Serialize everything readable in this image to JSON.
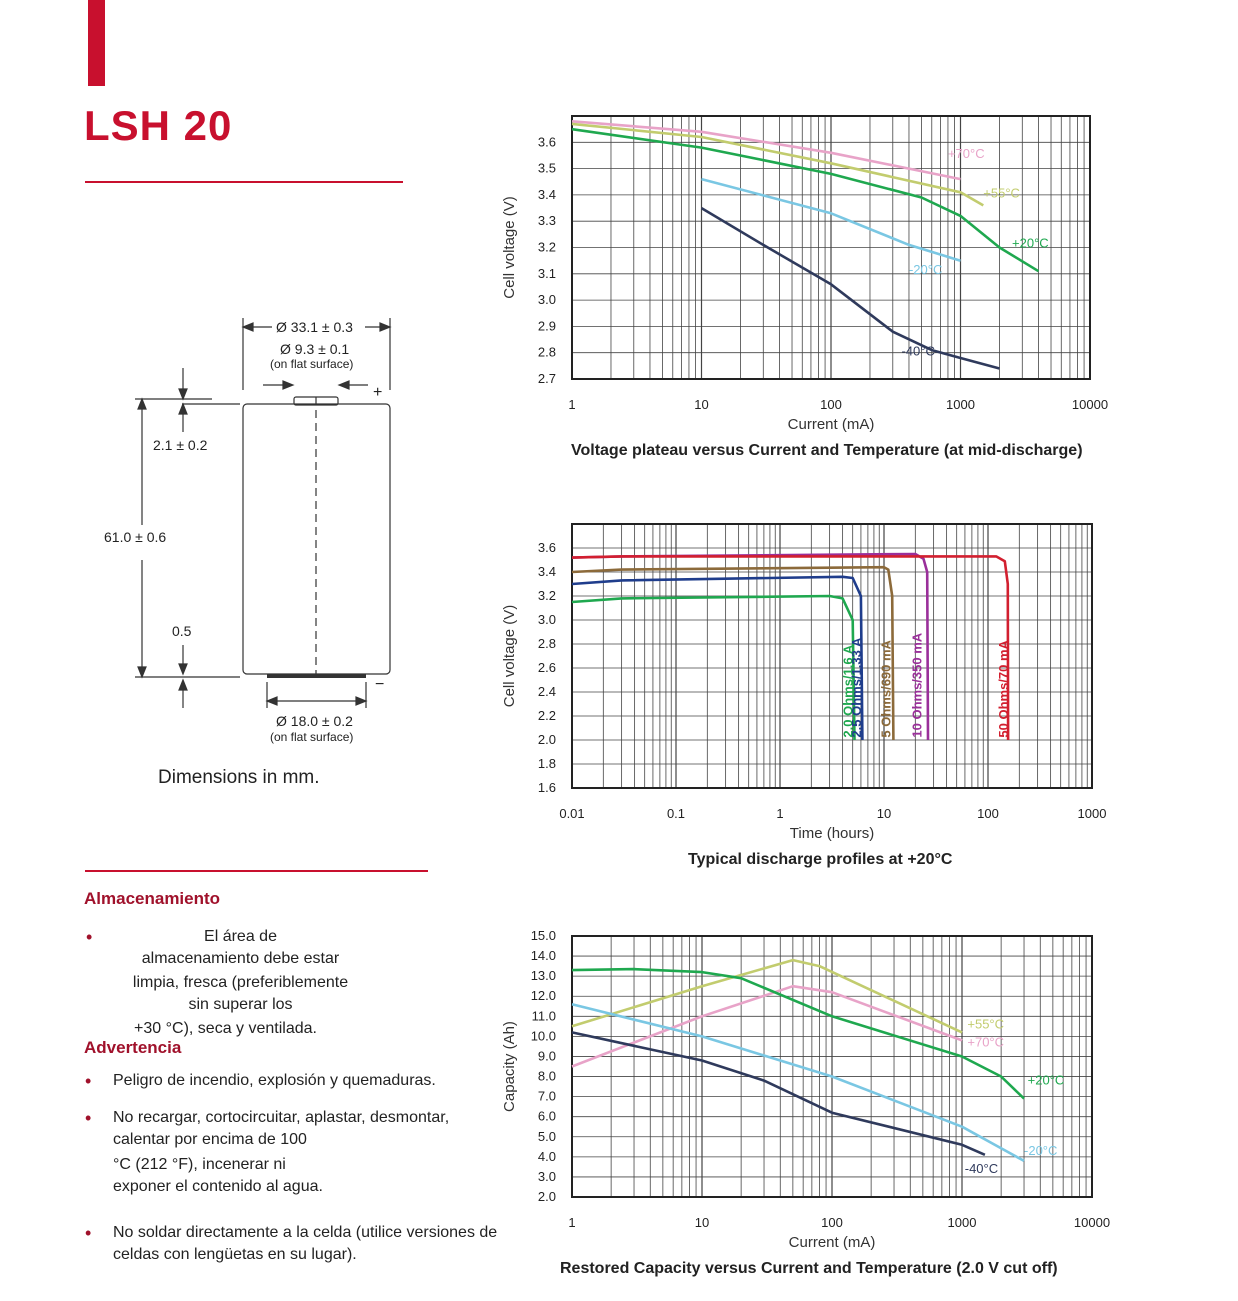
{
  "title": "LSH 20",
  "drawing": {
    "dim_outer_dia": "Ø 33.1 ± 0.3",
    "dim_top_dia": "Ø 9.3 ± 0.1",
    "dim_top_note": "(on flat surface)",
    "dim_top_height": "2.1 ± 0.2",
    "dim_height": "61.0 ± 0.6",
    "dim_bottom": "0.5",
    "dim_bottom_dia": "Ø 18.0 ± 0.2",
    "dim_bottom_note": "(on flat surface)",
    "plus": "+",
    "minus": "−",
    "caption": "Dimensions in mm."
  },
  "storage": {
    "heading": "Almacenamiento",
    "line1": "El área de",
    "line2": "almacenamiento debe estar",
    "line3": "limpia, fresca (preferiblemente",
    "line4": "sin superar los",
    "line5": "+30 °C), seca y ventilada."
  },
  "warning": {
    "heading": "Advertencia",
    "item1": "Peligro de incendio, explosión y quemaduras.",
    "item2_l1": "No recargar, cortocircuitar, aplastar, desmontar,",
    "item2_l2": "calentar por encima de 100",
    "item2_l3": "°C (212 °F), incenerar ni",
    "item2_l4": "exponer el contenido al agua.",
    "item3_l1": "No soldar directamente a la celda (utilice versiones de",
    "item3_l2": "celdas con lengüetas en su lugar)."
  },
  "colors": {
    "accent": "#c8102e",
    "green": "#1fa84f",
    "yellowgreen": "#c2cc6e",
    "pink": "#e8a3c8",
    "lightblue": "#7ac7e3",
    "navy": "#2f3a5c",
    "blue": "#1f3d8c",
    "brown": "#8c6a3a",
    "purple": "#9a2f9a",
    "red": "#d21f2f"
  },
  "chart_data": [
    {
      "type": "line",
      "title": "Voltage plateau versus Current and Temperature (at mid-discharge)",
      "xlabel": "Current (mA)",
      "ylabel": "Cell voltage (V)",
      "xscale": "log",
      "xlim": [
        1,
        10000
      ],
      "ylim": [
        2.7,
        3.7
      ],
      "x_ticks": [
        "1",
        "10",
        "100",
        "1000",
        "10000"
      ],
      "y_ticks": [
        "2.7",
        "2.8",
        "2.9",
        "3.0",
        "3.1",
        "3.2",
        "3.3",
        "3.4",
        "3.5",
        "3.6"
      ],
      "grid": true,
      "series": [
        {
          "name": "+70°C",
          "color": "#e8a3c8",
          "x": [
            1,
            10,
            100,
            1000
          ],
          "y": [
            3.68,
            3.64,
            3.56,
            3.46
          ]
        },
        {
          "name": "+55°C",
          "color": "#c2cc6e",
          "x": [
            1,
            10,
            100,
            1000,
            1500
          ],
          "y": [
            3.67,
            3.62,
            3.52,
            3.41,
            3.36
          ]
        },
        {
          "name": "+20°C",
          "color": "#1fa84f",
          "x": [
            1,
            10,
            100,
            500,
            1000,
            2000,
            4000
          ],
          "y": [
            3.65,
            3.58,
            3.48,
            3.39,
            3.32,
            3.2,
            3.11
          ]
        },
        {
          "name": "-20°C",
          "color": "#7ac7e3",
          "x": [
            10,
            100,
            400,
            1000
          ],
          "y": [
            3.46,
            3.33,
            3.21,
            3.15
          ]
        },
        {
          "name": "-40°C",
          "color": "#2f3a5c",
          "x": [
            10,
            30,
            100,
            300,
            600,
            1000,
            2000
          ],
          "y": [
            3.35,
            3.21,
            3.06,
            2.88,
            2.81,
            2.78,
            2.74
          ]
        }
      ]
    },
    {
      "type": "line",
      "title": "Typical discharge profiles at +20°C",
      "xlabel": "Time (hours)",
      "ylabel": "Cell voltage (V)",
      "xscale": "log",
      "xlim": [
        0.01,
        1000
      ],
      "ylim": [
        1.6,
        3.8
      ],
      "x_ticks": [
        "0.01",
        "0.1",
        "1",
        "10",
        "100",
        "1000"
      ],
      "y_ticks": [
        "1.6",
        "1.8",
        "2.0",
        "2.2",
        "2.4",
        "2.6",
        "2.8",
        "3.0",
        "3.2",
        "3.4",
        "3.6"
      ],
      "grid": true,
      "series": [
        {
          "name": "2.0 Ohms/1.6 A",
          "color": "#1fa84f",
          "x": [
            0.01,
            0.03,
            3,
            4,
            5,
            5.2
          ],
          "y": [
            3.15,
            3.18,
            3.2,
            3.18,
            3.0,
            2.0
          ]
        },
        {
          "name": "2.5 Ohms/1.33 A",
          "color": "#1f3d8c",
          "x": [
            0.01,
            0.03,
            4,
            5,
            6,
            6.2
          ],
          "y": [
            3.3,
            3.33,
            3.36,
            3.35,
            3.2,
            2.0
          ]
        },
        {
          "name": "5 Ohms/690 mA",
          "color": "#8c6a3a",
          "x": [
            0.01,
            0.03,
            10,
            11,
            12,
            12.3
          ],
          "y": [
            3.4,
            3.42,
            3.44,
            3.42,
            3.2,
            2.0
          ]
        },
        {
          "name": "10 Ohms/350 mA",
          "color": "#9a2f9a",
          "x": [
            0.01,
            0.03,
            20,
            24,
            26,
            26.5
          ],
          "y": [
            3.52,
            3.53,
            3.55,
            3.51,
            3.4,
            2.0
          ]
        },
        {
          "name": "50 Ohms/70 mA",
          "color": "#d21f2f",
          "x": [
            0.01,
            0.03,
            120,
            145,
            155,
            156
          ],
          "y": [
            3.52,
            3.53,
            3.53,
            3.49,
            3.3,
            2.0
          ]
        }
      ]
    },
    {
      "type": "line",
      "title": "Restored Capacity versus Current and Temperature (2.0 V cut off)",
      "xlabel": "Current (mA)",
      "ylabel": "Capacity (Ah)",
      "xscale": "log",
      "xlim": [
        1,
        10000
      ],
      "ylim": [
        2.0,
        15.0
      ],
      "x_ticks": [
        "1",
        "10",
        "100",
        "1000",
        "10000"
      ],
      "y_ticks": [
        "2.0",
        "3.0",
        "4.0",
        "5.0",
        "6.0",
        "7.0",
        "8.0",
        "9.0",
        "10.0",
        "11.0",
        "12.0",
        "13.0",
        "14.0",
        "15.0"
      ],
      "grid": true,
      "series": [
        {
          "name": "+55°C",
          "color": "#c2cc6e",
          "x": [
            1,
            10,
            50,
            80,
            1000
          ],
          "y": [
            10.5,
            12.5,
            13.8,
            13.5,
            10.2
          ]
        },
        {
          "name": "+70°C",
          "color": "#e8a3c8",
          "x": [
            1,
            10,
            50,
            100,
            1000
          ],
          "y": [
            8.5,
            11.0,
            12.5,
            12.2,
            9.8
          ]
        },
        {
          "name": "+20°C",
          "color": "#1fa84f",
          "x": [
            1,
            3,
            10,
            20,
            100,
            1000,
            2000,
            3000
          ],
          "y": [
            13.3,
            13.35,
            13.2,
            12.9,
            11.0,
            9.0,
            8.0,
            6.9
          ]
        },
        {
          "name": "-20°C",
          "color": "#7ac7e3",
          "x": [
            1,
            10,
            100,
            1000,
            3000
          ],
          "y": [
            11.6,
            10.0,
            8.0,
            5.5,
            3.8
          ]
        },
        {
          "name": "-40°C",
          "color": "#2f3a5c",
          "x": [
            1,
            10,
            30,
            100,
            1000,
            1500
          ],
          "y": [
            10.2,
            8.8,
            7.8,
            6.2,
            4.6,
            4.1
          ]
        }
      ],
      "labels": [
        "+55°C",
        "+70°C",
        "+20°C",
        "-20°C",
        "-40°C"
      ]
    }
  ],
  "chart1_labels": [
    "+70°C",
    "+55°C",
    "+20°C",
    "-20°C",
    "-40°C"
  ],
  "chart2_labels": [
    "2.0 Ohms/1.6 A",
    "2.5 Ohms/1.33 A",
    "5 Ohms/690 mA",
    "10 Ohms/350 mA",
    "50 Ohms/70 mA"
  ]
}
